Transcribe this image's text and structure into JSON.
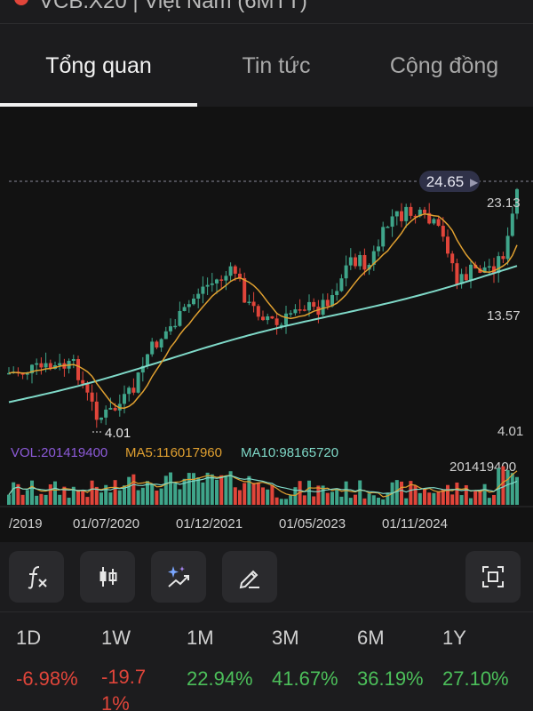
{
  "header": {
    "partial_title": "VCB.X20 | Việt Nam (6MTT)"
  },
  "tabs": [
    {
      "label": "Tổng quan",
      "active": true
    },
    {
      "label": "Tin tức",
      "active": false
    },
    {
      "label": "Cộng đồng",
      "active": false
    }
  ],
  "chart_data": {
    "type": "candlestick",
    "current_price_label": "24.65",
    "y_axis_labels": [
      "23.13",
      "13.57",
      "4.01"
    ],
    "min_marker_label": "4.01",
    "x_axis_labels": [
      "/2019",
      "01/07/2020",
      "01/12/2021",
      "01/05/2023",
      "01/11/2024"
    ],
    "volume": {
      "vol_label": "VOL:201419400",
      "ma5_label": "MA5:116017960",
      "ma10_label": "MA10:98165720",
      "max_label": "201419400"
    },
    "colors": {
      "up": "#3fa58a",
      "down": "#e0453a",
      "ma_short": "#e0a030",
      "ma_long": "#7fd9c8",
      "vol_label": "#8c5ad8"
    }
  },
  "toolbar": {
    "buttons": [
      {
        "icon": "function-icon"
      },
      {
        "icon": "candlestick-icon"
      },
      {
        "icon": "sparkle-chart-icon"
      },
      {
        "icon": "pencil-icon"
      },
      {
        "icon": "fullscreen-icon"
      }
    ]
  },
  "performance": [
    {
      "period": "1D",
      "change": "-6.98%",
      "direction": "down"
    },
    {
      "period": "1W",
      "change": "-19.71%",
      "direction": "down"
    },
    {
      "period": "1M",
      "change": "22.94%",
      "direction": "up"
    },
    {
      "period": "3M",
      "change": "41.67%",
      "direction": "up"
    },
    {
      "period": "6M",
      "change": "36.19%",
      "direction": "up"
    },
    {
      "period": "1Y",
      "change": "27.10%",
      "direction": "up"
    }
  ]
}
